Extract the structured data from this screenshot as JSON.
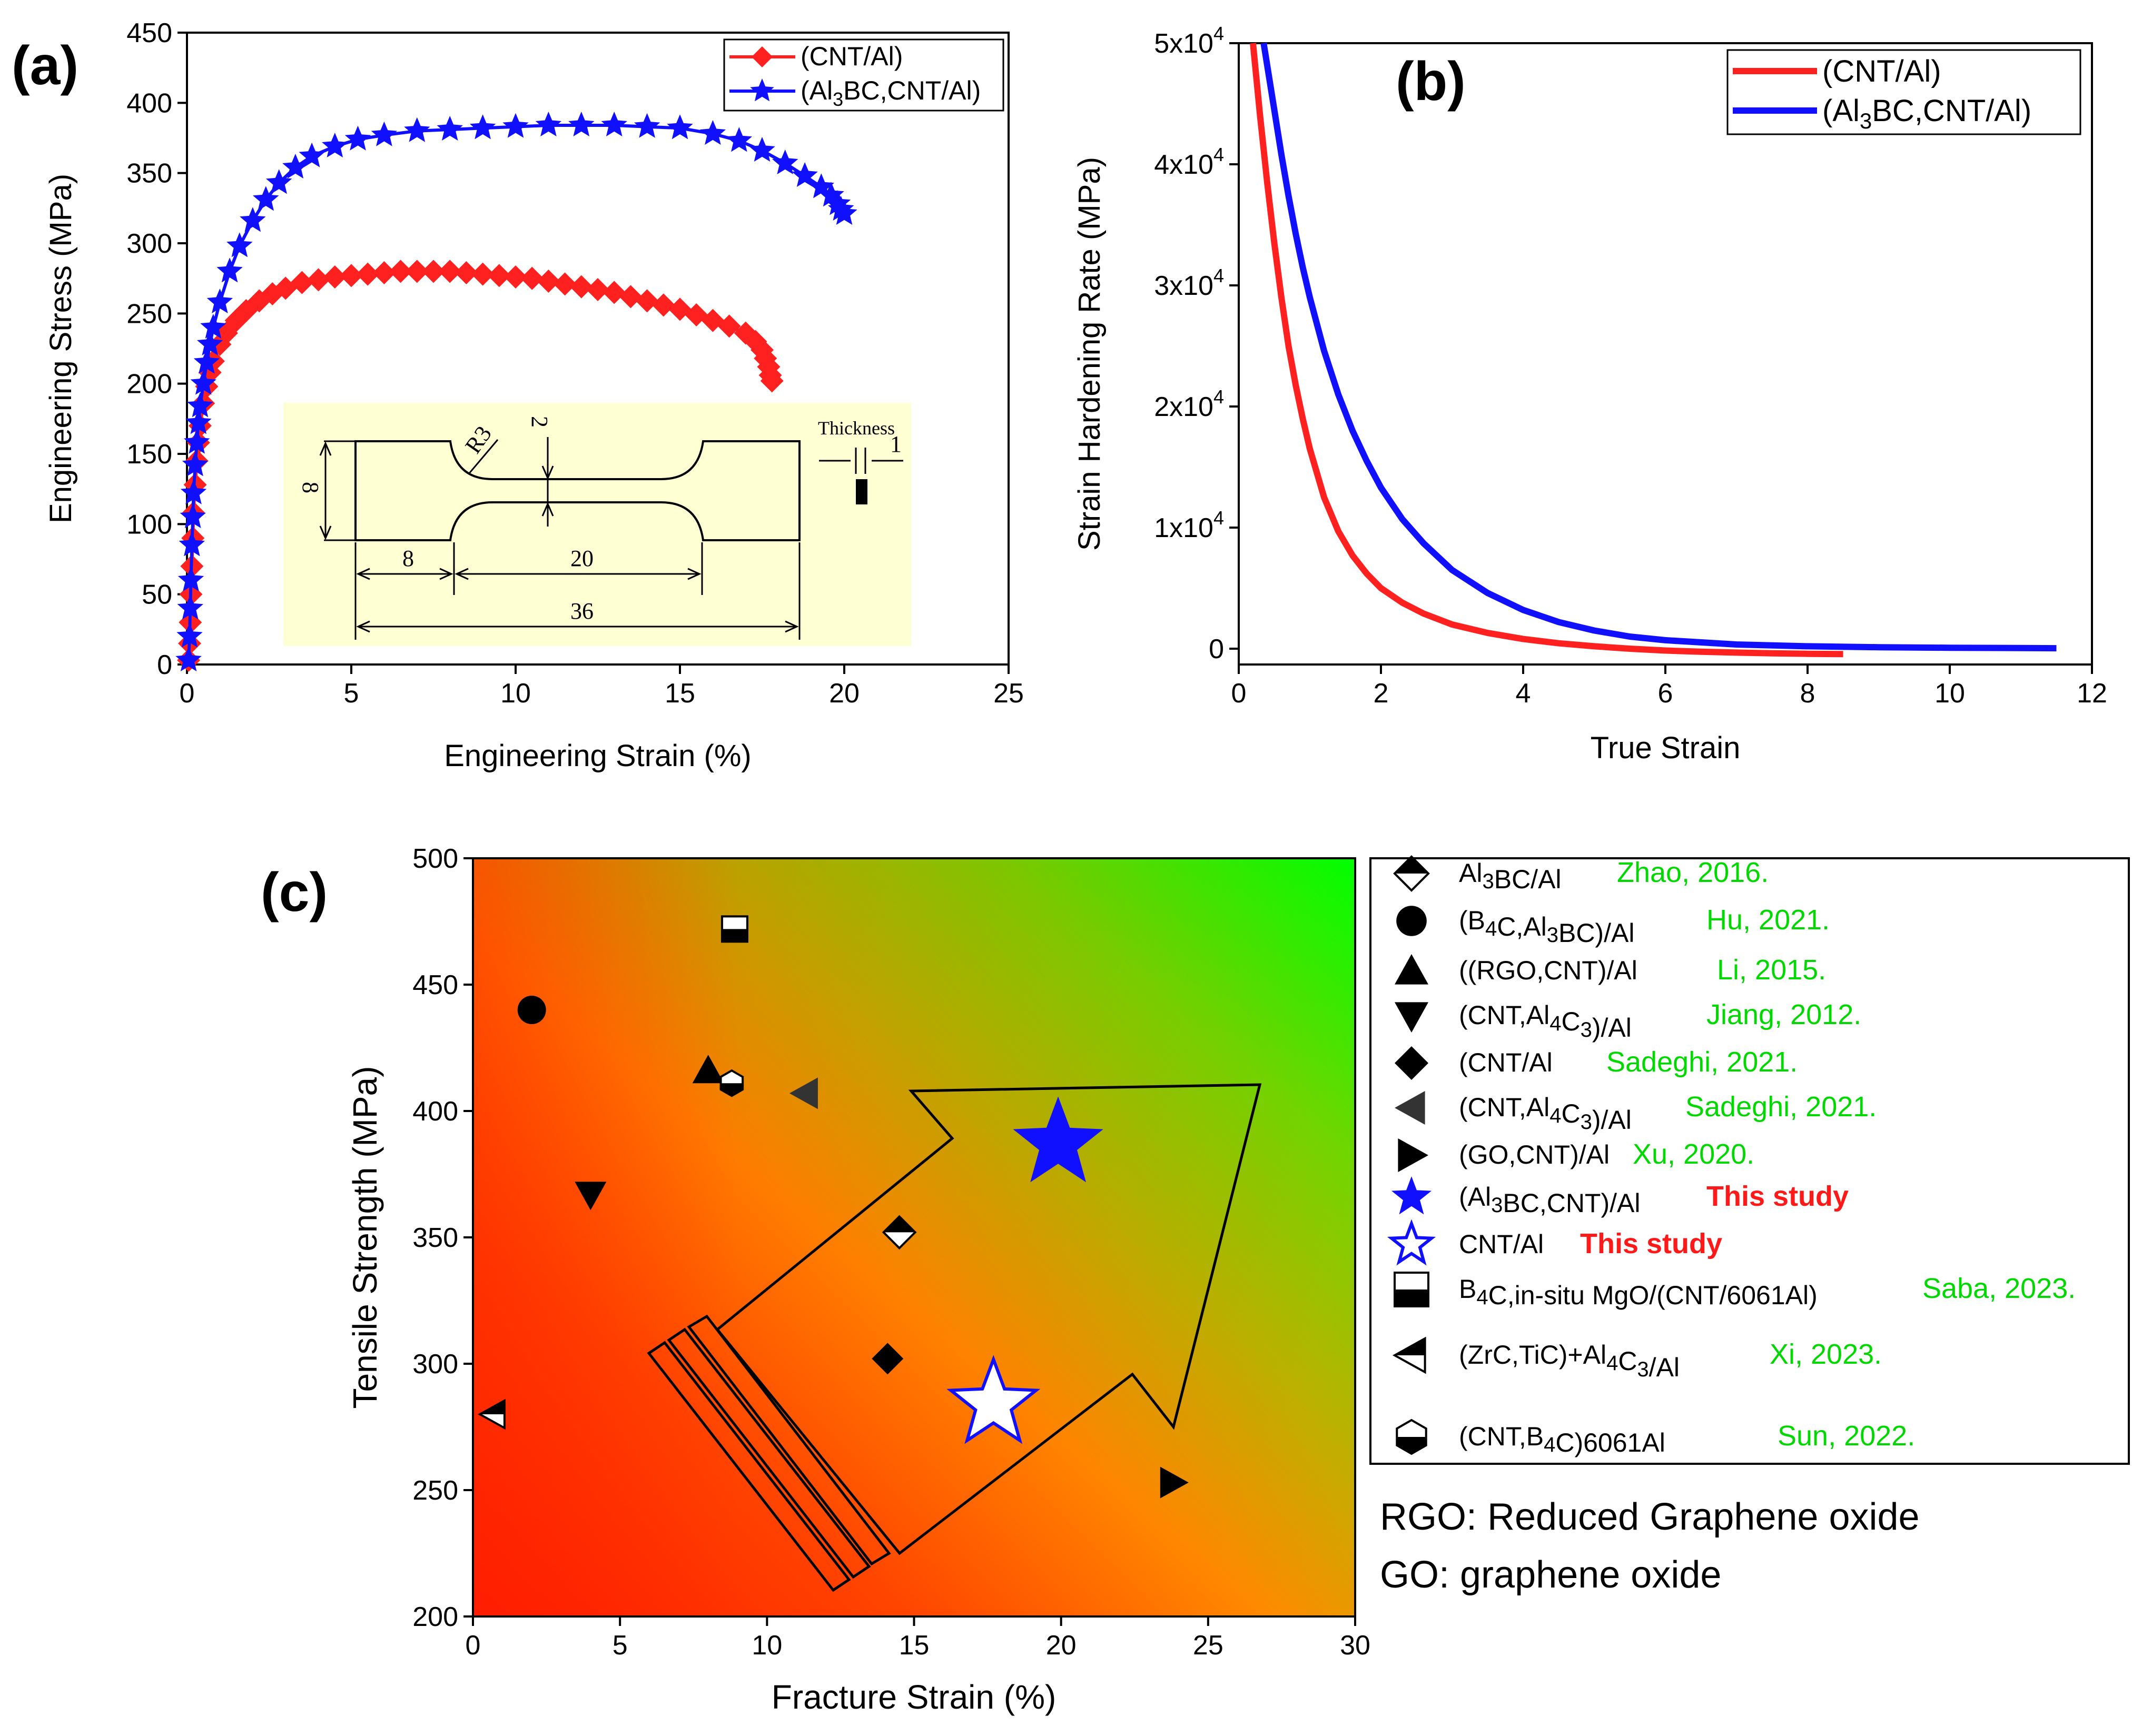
{
  "panels": {
    "a": {
      "label": "(a)",
      "xlabel": "Engineering Strain (%)",
      "ylabel": "Engineering Stress (MPa)",
      "legend": [
        {
          "name": "(CNT/Al)",
          "color": "#ff2020",
          "marker": "diamond"
        },
        {
          "main": "(Al",
          "sub": "3",
          "tail": "BC,CNT/Al)",
          "color": "#1010ff",
          "marker": "star"
        }
      ],
      "inset": {
        "labels": {
          "r3": "R3",
          "w2": "2",
          "h8": "8",
          "l8": "8",
          "l20": "20",
          "l36": "36",
          "thickness": "Thickness",
          "t1": "1"
        }
      }
    },
    "b": {
      "label": "(b)",
      "xlabel": "True Strain",
      "ylabel": "Strain Hardening Rate (MPa)",
      "legend": [
        {
          "name": "(CNT/Al)",
          "color": "#ff2020"
        },
        {
          "main": "(Al",
          "sub": "3",
          "tail": "BC,CNT/Al)",
          "color": "#1010ff"
        }
      ]
    },
    "c": {
      "label": "(c)",
      "xlabel": "Fracture Strain (%)",
      "ylabel": "Tensile Strength (MPa)",
      "legend": [
        {
          "marker": "diamond-half",
          "parts": [
            {
              "t": "Al"
            },
            {
              "t": "3",
              "sub": true
            },
            {
              "t": "BC/Al"
            }
          ],
          "ref": "Zhao, 2016.",
          "ref_style": "lit"
        },
        {
          "marker": "circle",
          "parts": [
            {
              "t": "(B"
            },
            {
              "t": "4",
              "sub": true
            },
            {
              "t": "C,Al"
            },
            {
              "t": "3",
              "sub": true
            },
            {
              "t": "BC)/Al"
            }
          ],
          "ref": "Hu, 2021.",
          "ref_style": "lit"
        },
        {
          "marker": "triangle-up",
          "parts": [
            {
              "t": "((RGO,CNT)/Al"
            }
          ],
          "ref": "Li, 2015.",
          "ref_style": "lit"
        },
        {
          "marker": "triangle-down",
          "parts": [
            {
              "t": "(CNT,Al"
            },
            {
              "t": "4",
              "sub": true
            },
            {
              "t": "C"
            },
            {
              "t": "3",
              "sub": true
            },
            {
              "t": ")/Al"
            }
          ],
          "ref": "Jiang, 2012.",
          "ref_style": "lit"
        },
        {
          "marker": "diamond",
          "parts": [
            {
              "t": "(CNT/Al"
            }
          ],
          "ref": "Sadeghi, 2021.",
          "ref_style": "lit"
        },
        {
          "marker": "triangle-left-gray",
          "parts": [
            {
              "t": "(CNT,Al"
            },
            {
              "t": "4",
              "sub": true
            },
            {
              "t": "C"
            },
            {
              "t": "3",
              "sub": true
            },
            {
              "t": ")/Al"
            }
          ],
          "ref": "Sadeghi, 2021.",
          "ref_style": "lit"
        },
        {
          "marker": "triangle-right",
          "parts": [
            {
              "t": "(GO,CNT)/Al"
            }
          ],
          "ref": "Xu, 2020.",
          "ref_style": "lit"
        },
        {
          "marker": "star-blue",
          "parts": [
            {
              "t": "(Al"
            },
            {
              "t": "3",
              "sub": true
            },
            {
              "t": "BC,CNT)/Al"
            }
          ],
          "ref": "This study",
          "ref_style": "study"
        },
        {
          "marker": "star-open",
          "parts": [
            {
              "t": "CNT/Al"
            }
          ],
          "ref": "This study",
          "ref_style": "study"
        },
        {
          "marker": "square-half",
          "parts": [
            {
              "t": "B"
            },
            {
              "t": "4",
              "sub": true
            },
            {
              "t": "C,in-situ MgO/(CNT/6061Al)"
            }
          ],
          "ref": "Saba, 2023.",
          "ref_style": "lit"
        },
        {
          "marker": "triangle-left-half",
          "parts": [
            {
              "t": "(ZrC,TiC)+Al"
            },
            {
              "t": "4",
              "sub": true
            },
            {
              "t": "C"
            },
            {
              "t": "3",
              "sub": true
            },
            {
              "t": "/Al"
            }
          ],
          "ref": "Xi, 2023.",
          "ref_style": "lit"
        },
        {
          "marker": "hexagon-half",
          "parts": [
            {
              "t": "(CNT,B"
            },
            {
              "t": "4",
              "sub": true
            },
            {
              "t": "C)6061Al"
            }
          ],
          "ref": "Sun, 2022.",
          "ref_style": "lit"
        }
      ],
      "notes": [
        "RGO: Reduced Graphene oxide",
        "GO: graphene oxide"
      ]
    }
  },
  "chart_data": [
    {
      "panel": "a",
      "type": "line",
      "xlabel": "Engineering Strain (%)",
      "ylabel": "Engineering Stress (MPa)",
      "xlim": [
        0,
        25
      ],
      "ylim": [
        0,
        450
      ],
      "xticks": [
        0,
        5,
        10,
        15,
        20,
        25
      ],
      "yticks": [
        0,
        50,
        100,
        150,
        200,
        250,
        300,
        350,
        400,
        450
      ],
      "legend_position": "top-right",
      "series": [
        {
          "name": "(CNT/Al)",
          "color": "#ff2020",
          "marker": "diamond",
          "x": [
            0.05,
            0.08,
            0.1,
            0.12,
            0.15,
            0.18,
            0.2,
            0.25,
            0.3,
            0.35,
            0.4,
            0.5,
            0.6,
            0.7,
            0.8,
            1.0,
            1.2,
            1.5,
            1.8,
            2.2,
            2.6,
            3.0,
            3.5,
            4.0,
            4.5,
            5.0,
            5.5,
            6.0,
            6.5,
            7.0,
            7.5,
            8.0,
            8.5,
            9.0,
            9.5,
            10.0,
            10.5,
            11.0,
            11.5,
            12.0,
            12.5,
            13.0,
            13.5,
            14.0,
            14.5,
            15.0,
            15.5,
            16.0,
            16.5,
            17.0,
            17.3,
            17.5,
            17.6,
            17.7,
            17.75,
            17.8
          ],
          "y": [
            3,
            15,
            30,
            50,
            70,
            90,
            108,
            128,
            145,
            158,
            170,
            186,
            198,
            208,
            216,
            228,
            236,
            245,
            252,
            259,
            264,
            268,
            272,
            274,
            276,
            277,
            278,
            279,
            280,
            280,
            280,
            280,
            279,
            278,
            277,
            276,
            275,
            273,
            271,
            269,
            267,
            265,
            262,
            259,
            256,
            253,
            249,
            245,
            241,
            236,
            230,
            224,
            218,
            212,
            206,
            202
          ]
        },
        {
          "name": "(Al3BC,CNT/Al)",
          "color": "#1010ff",
          "marker": "star",
          "x": [
            0.05,
            0.08,
            0.1,
            0.12,
            0.15,
            0.18,
            0.2,
            0.25,
            0.3,
            0.35,
            0.4,
            0.5,
            0.6,
            0.7,
            0.8,
            1.0,
            1.3,
            1.6,
            2.0,
            2.4,
            2.8,
            3.3,
            3.8,
            4.5,
            5.2,
            6.0,
            7.0,
            8.0,
            9.0,
            10.0,
            11.0,
            12.0,
            13.0,
            14.0,
            15.0,
            16.0,
            16.8,
            17.5,
            18.2,
            18.8,
            19.3,
            19.6,
            19.8,
            19.9,
            20.0
          ],
          "y": [
            3,
            20,
            40,
            60,
            85,
            105,
            122,
            142,
            158,
            172,
            184,
            200,
            215,
            228,
            240,
            258,
            280,
            298,
            316,
            331,
            343,
            354,
            362,
            369,
            374,
            377,
            380,
            381,
            382,
            383,
            384,
            384,
            384,
            383,
            382,
            378,
            373,
            366,
            357,
            348,
            340,
            334,
            328,
            324,
            321
          ]
        }
      ]
    },
    {
      "panel": "b",
      "type": "line",
      "xlabel": "True Strain",
      "ylabel": "Strain Hardening Rate (MPa)",
      "xlim": [
        0,
        12
      ],
      "ylim": [
        -2000,
        50000
      ],
      "xticks": [
        0,
        2,
        4,
        6,
        8,
        10,
        12
      ],
      "yticks": [
        0,
        10000,
        20000,
        30000,
        40000,
        50000
      ],
      "ytick_labels": [
        {
          "t": "0"
        },
        {
          "m": "1x10",
          "e": "4"
        },
        {
          "m": "2x10",
          "e": "4"
        },
        {
          "m": "3x10",
          "e": "4"
        },
        {
          "m": "4x10",
          "e": "4"
        },
        {
          "m": "5x10",
          "e": "4"
        }
      ],
      "legend_position": "top-right",
      "series": [
        {
          "name": "(CNT/Al)",
          "color": "#ff2020",
          "x": [
            0.2,
            0.3,
            0.4,
            0.5,
            0.6,
            0.7,
            0.8,
            0.9,
            1.0,
            1.2,
            1.4,
            1.6,
            1.8,
            2.0,
            2.3,
            2.6,
            3.0,
            3.5,
            4.0,
            4.5,
            5.0,
            5.5,
            6.0,
            6.5,
            7.0,
            7.5,
            8.0,
            8.5
          ],
          "y": [
            50000,
            44000,
            38500,
            33500,
            29000,
            25000,
            21800,
            19000,
            16500,
            12500,
            9700,
            7700,
            6200,
            5000,
            3800,
            2900,
            2000,
            1300,
            800,
            450,
            200,
            0,
            -150,
            -250,
            -320,
            -380,
            -420,
            -450
          ]
        },
        {
          "name": "(Al3BC,CNT/Al)",
          "color": "#1010ff",
          "x": [
            0.35,
            0.5,
            0.6,
            0.7,
            0.8,
            0.9,
            1.0,
            1.2,
            1.4,
            1.6,
            1.8,
            2.0,
            2.3,
            2.6,
            3.0,
            3.5,
            4.0,
            4.5,
            5.0,
            5.5,
            6.0,
            7.0,
            8.0,
            9.0,
            10.0,
            11.0,
            11.5
          ],
          "y": [
            50000,
            44500,
            40800,
            37400,
            34300,
            31500,
            29000,
            24600,
            21000,
            18000,
            15500,
            13300,
            10700,
            8700,
            6500,
            4600,
            3200,
            2200,
            1500,
            1000,
            700,
            350,
            200,
            120,
            80,
            50,
            40
          ]
        }
      ]
    },
    {
      "panel": "c",
      "type": "scatter",
      "xlabel": "Fracture Strain (%)",
      "ylabel": "Tensile Strength (MPa)",
      "xlim": [
        0,
        30
      ],
      "ylim": [
        200,
        500
      ],
      "xticks": [
        0,
        5,
        10,
        15,
        20,
        25,
        30
      ],
      "yticks": [
        200,
        250,
        300,
        350,
        400,
        450,
        500
      ],
      "legend_position": "right",
      "points": [
        {
          "series": "Al3BC/Al",
          "marker": "diamond-half",
          "x": 14.5,
          "y": 352
        },
        {
          "series": "(B4C,Al3BC)/Al",
          "marker": "circle",
          "x": 2.0,
          "y": 440
        },
        {
          "series": "((RGO,CNT)/Al",
          "marker": "triangle-up",
          "x": 8.0,
          "y": 416
        },
        {
          "series": "(CNT,Al4C3)/Al",
          "marker": "triangle-down",
          "x": 4.0,
          "y": 367
        },
        {
          "series": "(CNT/Al",
          "marker": "diamond",
          "x": 14.1,
          "y": 302
        },
        {
          "series": "(CNT,Al4C3)/Al",
          "marker": "triangle-left-gray",
          "x": 11.3,
          "y": 407
        },
        {
          "series": "(GO,CNT)/Al",
          "marker": "triangle-right",
          "x": 23.8,
          "y": 253
        },
        {
          "series": "(Al3BC,CNT)/Al",
          "marker": "star-blue",
          "x": 19.9,
          "y": 387
        },
        {
          "series": "CNT/Al",
          "marker": "star-open",
          "x": 17.7,
          "y": 284
        },
        {
          "series": "B4C,in-situ MgO/(CNT/6061Al)",
          "marker": "square-half",
          "x": 8.9,
          "y": 472
        },
        {
          "series": "(ZrC,TiC)+Al4C3/Al",
          "marker": "triangle-left-half",
          "x": 0.7,
          "y": 280
        },
        {
          "series": "(CNT,B4C)6061Al",
          "marker": "hexagon-half",
          "x": 8.8,
          "y": 411
        }
      ]
    }
  ]
}
